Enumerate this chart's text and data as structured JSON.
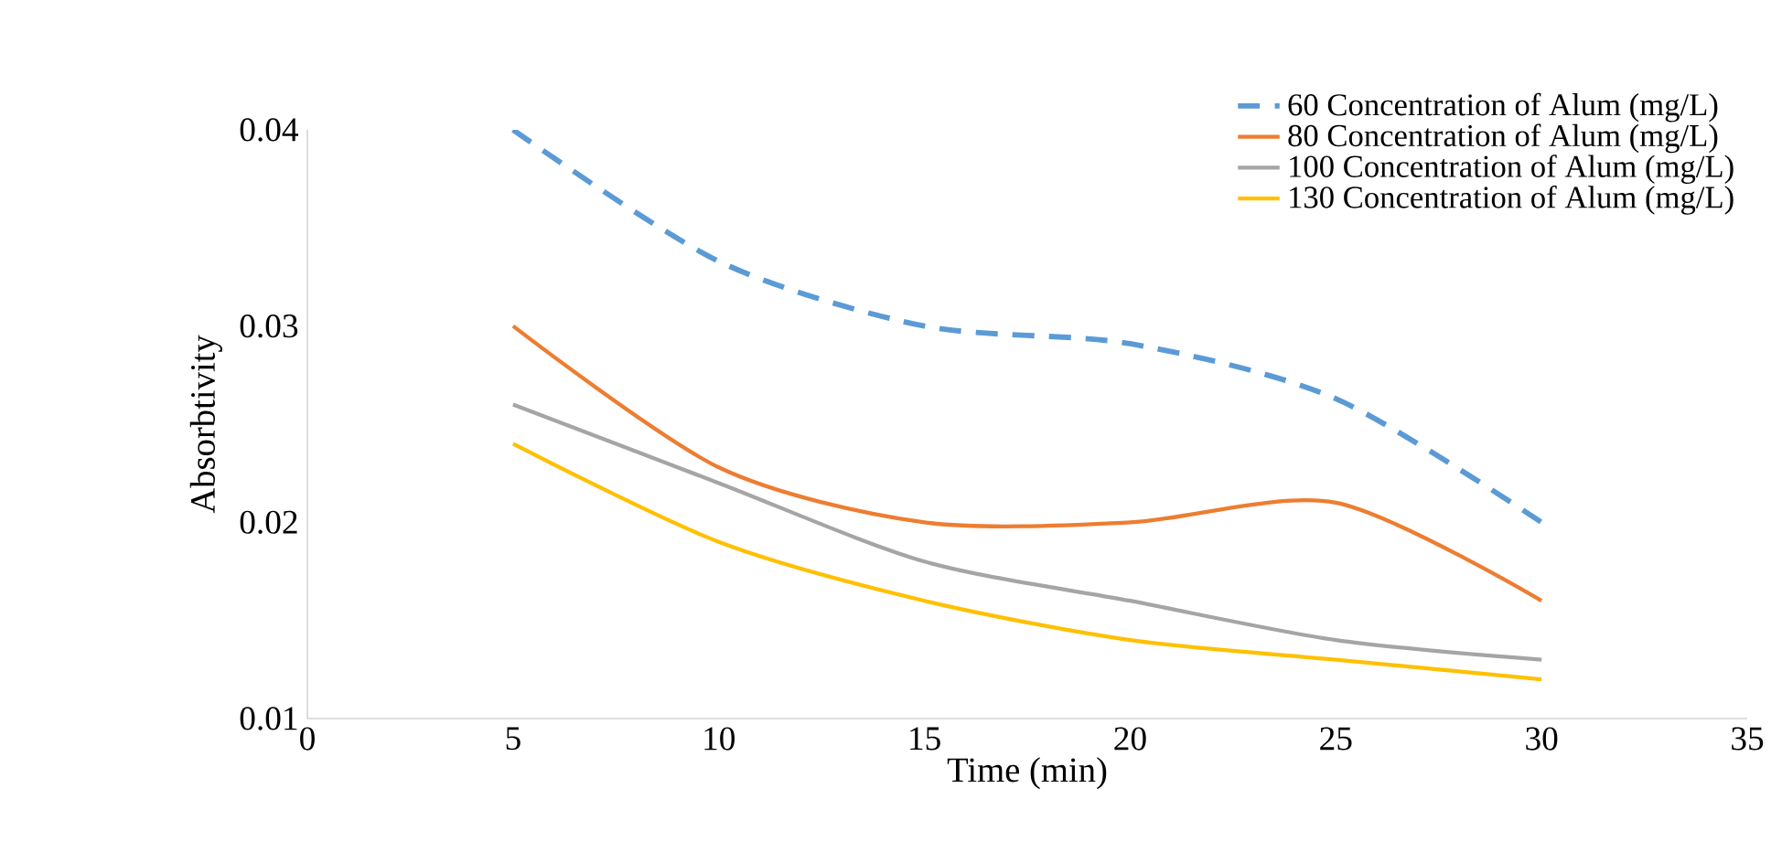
{
  "chart_data": {
    "type": "line",
    "xlabel": "Time (min)",
    "ylabel": "Absorbtivity",
    "x": [
      5,
      10,
      15,
      20,
      25,
      30
    ],
    "series": [
      {
        "name": "60 Concentration of Alum (mg/L)",
        "color": "#5b9bd5",
        "line_style": "dashed",
        "values": [
          0.04,
          0.0333,
          0.03,
          0.0291,
          0.0263,
          0.02
        ]
      },
      {
        "name": "80 Concentration of Alum (mg/L)",
        "color": "#ed7d31",
        "values": [
          0.03,
          0.0228,
          0.02,
          0.02,
          0.021,
          0.016
        ]
      },
      {
        "name": "100 Concentration of Alum (mg/L)",
        "color": "#a5a5a5",
        "values": [
          0.026,
          0.022,
          0.018,
          0.016,
          0.014,
          0.013
        ]
      },
      {
        "name": "130 Concentration of Alum (mg/L)",
        "color": "#ffc000",
        "values": [
          0.024,
          0.019,
          0.016,
          0.014,
          0.013,
          0.012
        ]
      }
    ],
    "xlim": [
      0,
      35
    ],
    "xticks": [
      0,
      5,
      10,
      15,
      20,
      25,
      30,
      35
    ],
    "ylim": [
      0.01,
      0.04
    ],
    "yticks": [
      0.01,
      0.02,
      0.03,
      0.04
    ],
    "grid": false,
    "legend": "top right",
    "marker": "none",
    "line_style": "solid"
  }
}
